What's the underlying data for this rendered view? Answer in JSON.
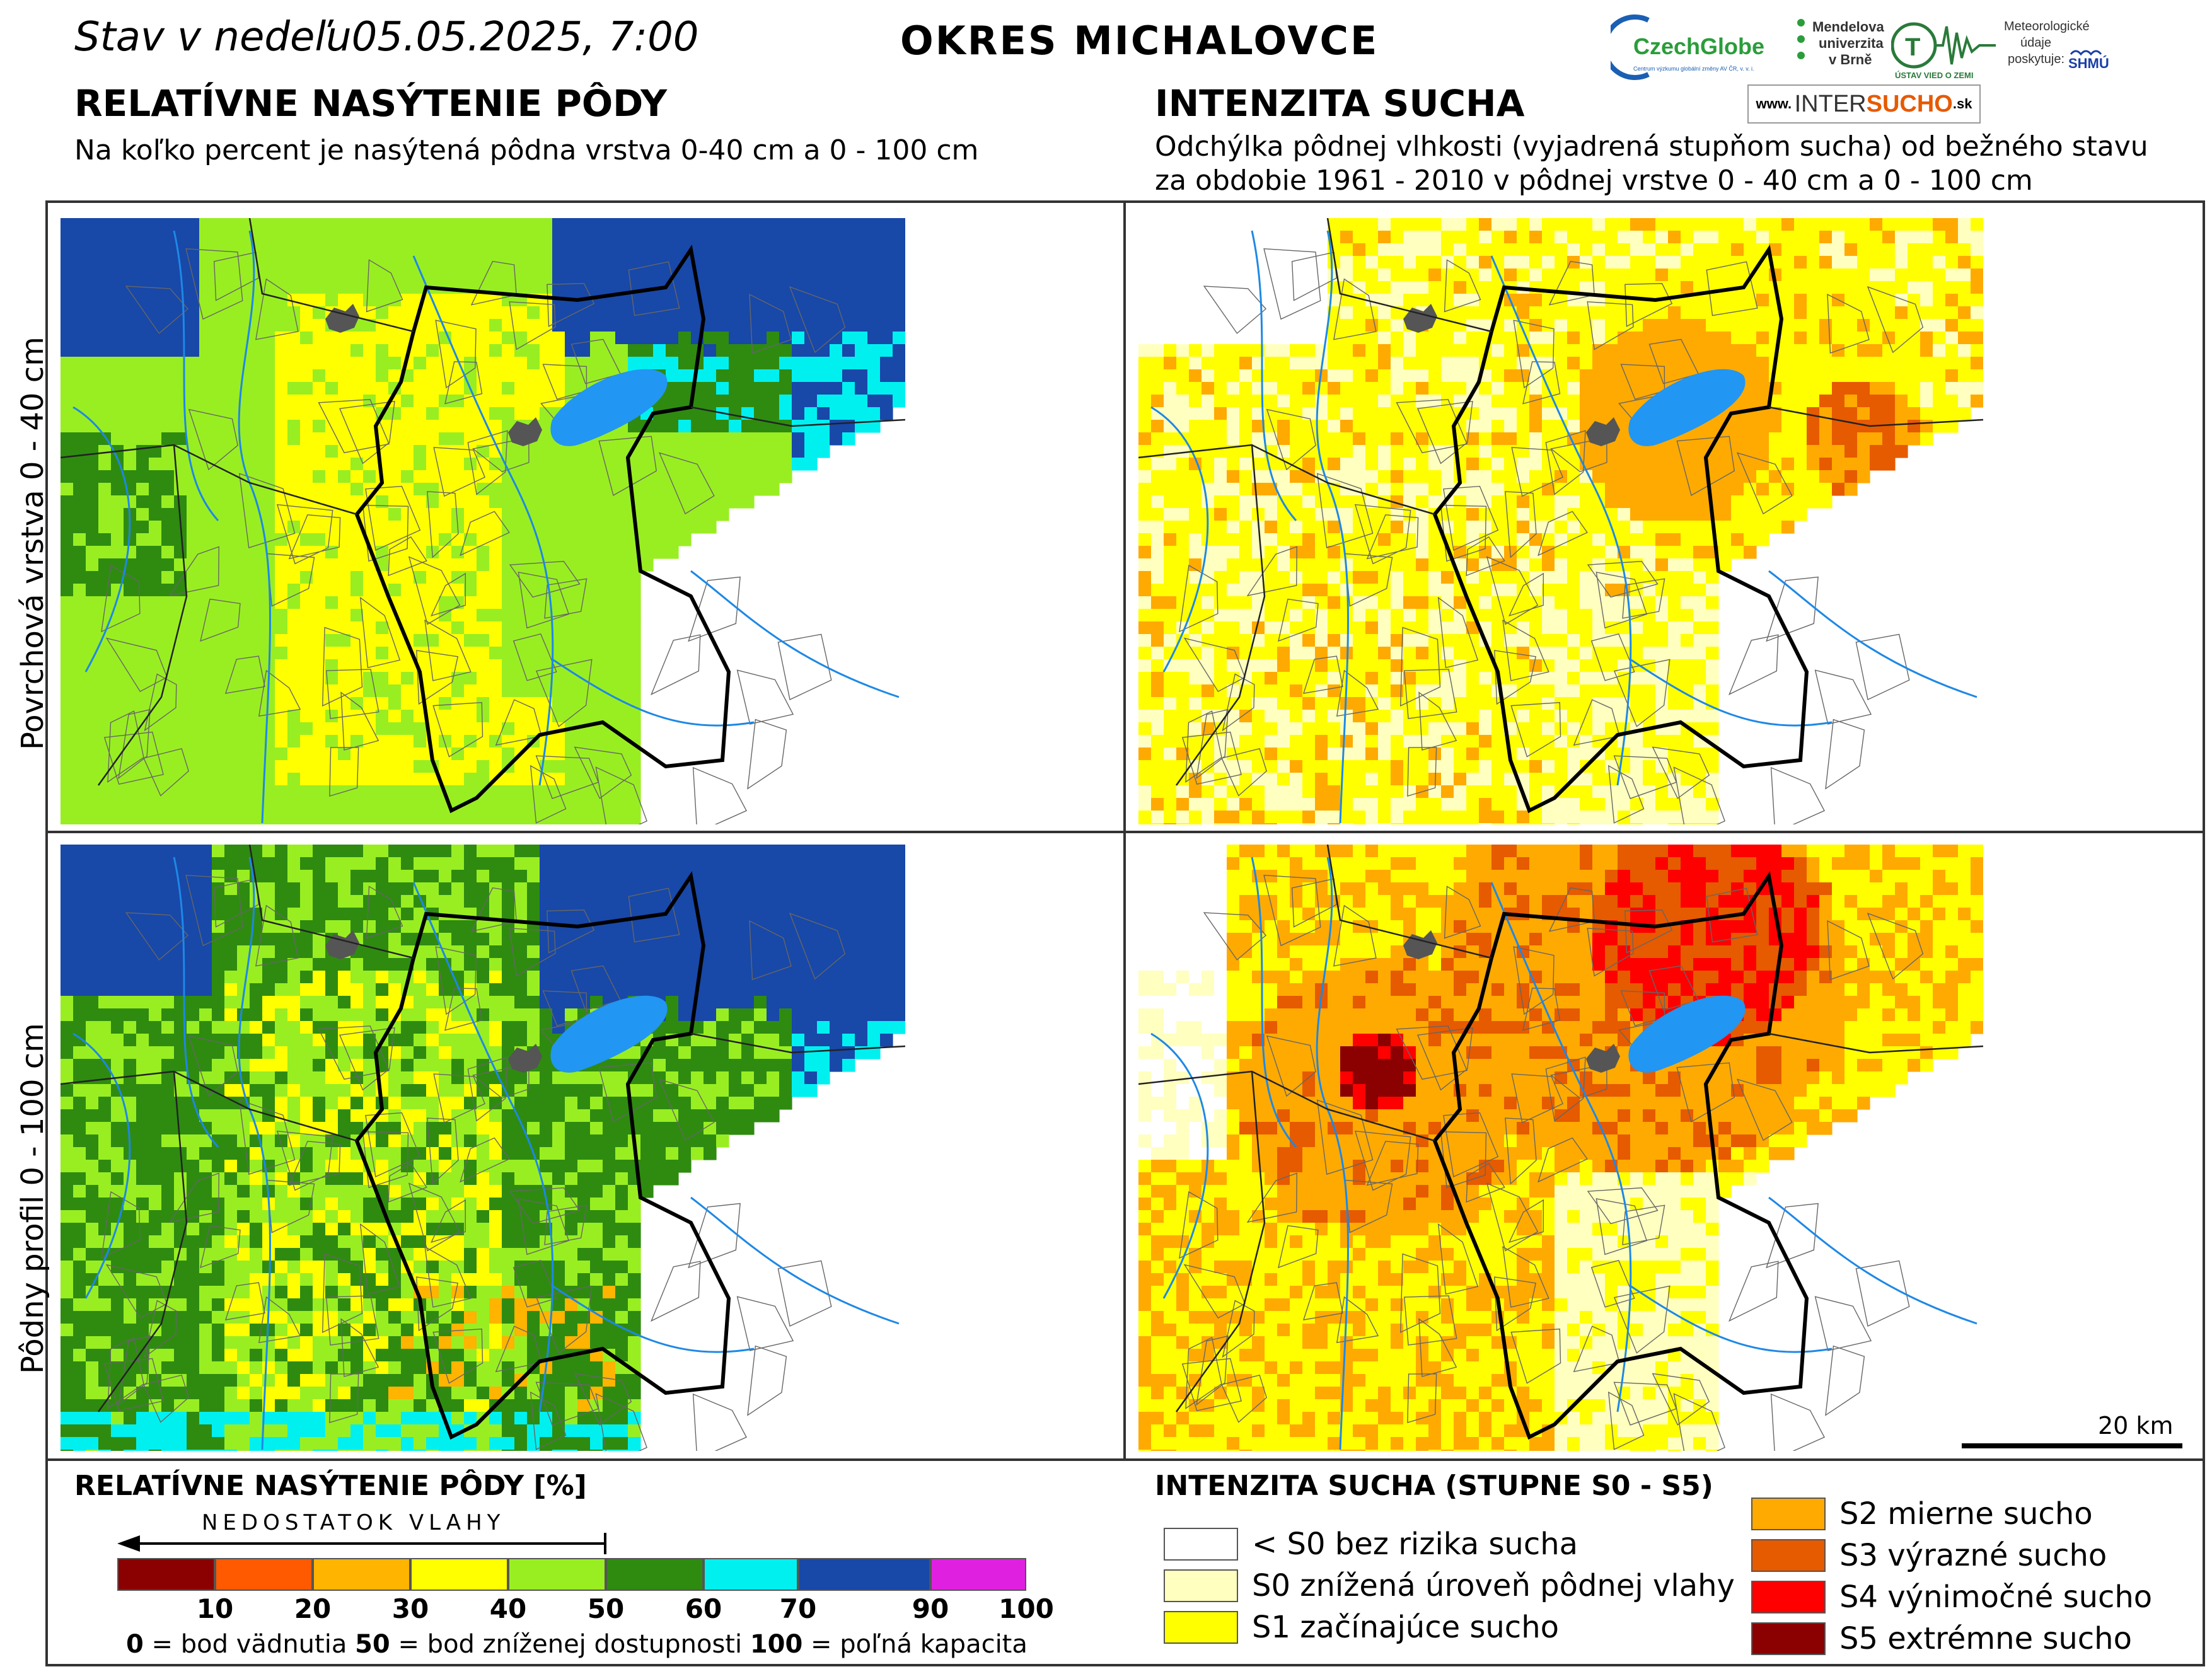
{
  "header": {
    "date_prefix": "Stav  v  nedeľu",
    "date": "05.05.2025, 7:00",
    "district": "OKRES  MICHALOVCE"
  },
  "left_section": {
    "title": "RELATÍVNE NASÝTENIE PÔDY",
    "subtitle": "Na koľko percent je nasýtená pôdna vrstva 0-40 cm a 0 - 100 cm"
  },
  "right_section": {
    "title": "INTENZITA SUCHA",
    "subtitle_line1": "Odchýlka pôdnej vlhkosti (vyjadrená stupňom sucha) od bežného stavu",
    "subtitle_line2": "za obdobie 1961 - 2010 v pôdnej vrstve 0 - 40 cm a 0 - 100 cm"
  },
  "row_labels": {
    "top": "Povrchová vrstva 0 - 40 cm",
    "bottom": "Pôdny profil 0 - 100 cm"
  },
  "logos": {
    "czechglobe": "CzechGlobe",
    "czechglobe_sub": "Centrum výzkumu globální změny AV ČR, v. v. i.",
    "mendelu_1": "Mendelova",
    "mendelu_2": "univerzita",
    "mendelu_3": "v Brně",
    "ustav": "ÚSTAV VIED O ZEMI",
    "meteo_1": "Meteorologické",
    "meteo_2": "údaje",
    "meteo_3": "poskytuje:",
    "shmu": "SHMÚ",
    "intersucho_www": "www.",
    "intersucho_a": "INTER",
    "intersucho_b": "SUCHO",
    "intersucho_c": ".sk"
  },
  "saturation_legend": {
    "title": "RELATÍVNE NASÝTENIE PÔDY [%]",
    "arrow_label": "NEDOSTATOK VLAHY",
    "classes": [
      {
        "from": 0,
        "to": 10,
        "color": "#8b0000"
      },
      {
        "from": 10,
        "to": 20,
        "color": "#ff5a00"
      },
      {
        "from": 20,
        "to": 30,
        "color": "#ffb400"
      },
      {
        "from": 30,
        "to": 40,
        "color": "#ffff00"
      },
      {
        "from": 40,
        "to": 50,
        "color": "#99ee22"
      },
      {
        "from": 50,
        "to": 60,
        "color": "#2e8b10"
      },
      {
        "from": 60,
        "to": 70,
        "color": "#00f0f0"
      },
      {
        "from": 70,
        "to": 90,
        "color": "#1848a8"
      },
      {
        "from": 90,
        "to": 100,
        "color": "#e020e0"
      }
    ],
    "ticks": [
      "10",
      "20",
      "30",
      "40",
      "50",
      "60",
      "70",
      "90",
      "100"
    ],
    "note_0": "0",
    "note_0_text": " = bod vädnutia   ",
    "note_50": "50",
    "note_50_text": " = bod zníženej dostupnosti   ",
    "note_100": "100",
    "note_100_text": " = poľná kapacita"
  },
  "drought_legend": {
    "title": "INTENZITA SUCHA (STUPNE S0 - S5)",
    "items": [
      {
        "label": "< S0 bez rizika sucha",
        "color": "#ffffff"
      },
      {
        "label": "S0 znížená úroveň pôdnej vlahy",
        "color": "#ffffc0"
      },
      {
        "label": "S1 začínajúce sucho",
        "color": "#ffff00"
      },
      {
        "label": "S2 mierne sucho",
        "color": "#ffaa00"
      },
      {
        "label": "S3 výrazné sucho",
        "color": "#e65a00"
      },
      {
        "label": "S4 výnimočné sucho",
        "color": "#ff0000"
      },
      {
        "label": "S5 extrémne sucho",
        "color": "#8b0000"
      }
    ]
  },
  "scale": {
    "label": "20 km"
  },
  "map_colors": {
    "water": "#2196f3",
    "river": "#1e88e5",
    "city": "#555555",
    "border": "#000000"
  }
}
